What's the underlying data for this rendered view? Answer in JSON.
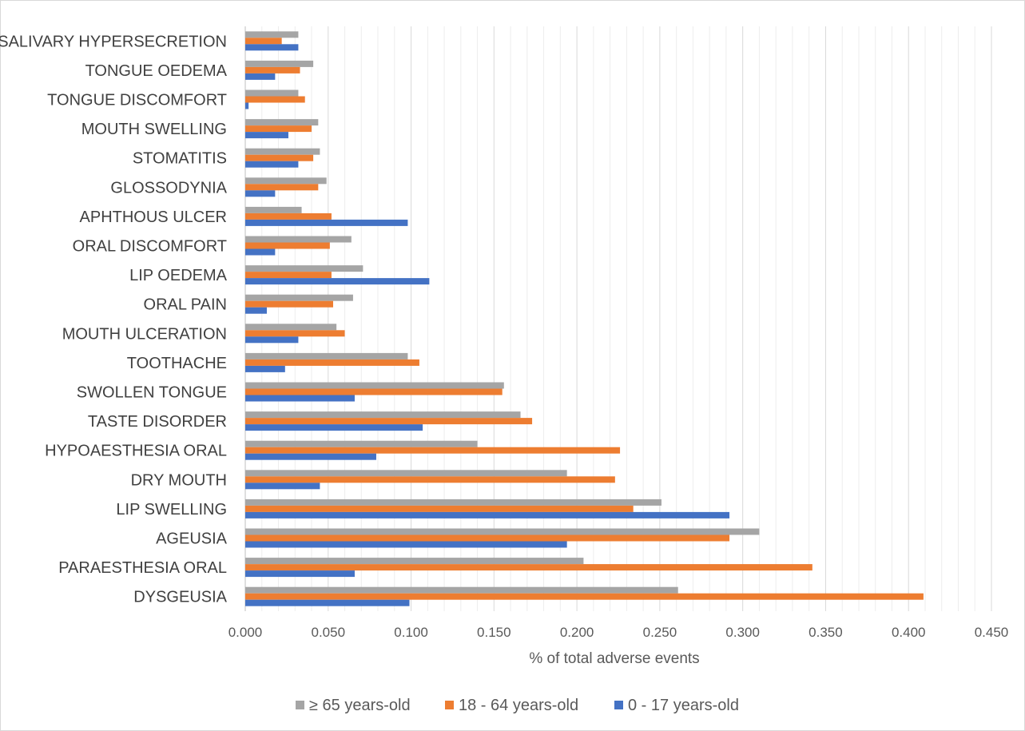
{
  "chart_data": {
    "type": "bar",
    "orientation": "horizontal",
    "categories": [
      "SALIVARY HYPERSECRETION",
      "TONGUE OEDEMA",
      "TONGUE DISCOMFORT",
      "MOUTH SWELLING",
      "STOMATITIS",
      "GLOSSODYNIA",
      "APHTHOUS ULCER",
      "ORAL DISCOMFORT",
      "LIP OEDEMA",
      "ORAL PAIN",
      "MOUTH ULCERATION",
      "TOOTHACHE",
      "SWOLLEN TONGUE",
      "TASTE DISORDER",
      "HYPOAESTHESIA ORAL",
      "DRY MOUTH",
      "LIP SWELLING",
      "AGEUSIA",
      "PARAESTHESIA ORAL",
      "DYSGEUSIA"
    ],
    "series": [
      {
        "name": "≥ 65 years-old",
        "color": "#a5a5a5",
        "values": [
          0.032,
          0.041,
          0.032,
          0.044,
          0.045,
          0.049,
          0.034,
          0.064,
          0.071,
          0.065,
          0.055,
          0.098,
          0.156,
          0.166,
          0.14,
          0.194,
          0.251,
          0.31,
          0.204,
          0.261
        ]
      },
      {
        "name": "18 - 64 years-old",
        "color": "#ed7d31",
        "values": [
          0.022,
          0.033,
          0.036,
          0.04,
          0.041,
          0.044,
          0.052,
          0.051,
          0.052,
          0.053,
          0.06,
          0.105,
          0.155,
          0.173,
          0.226,
          0.223,
          0.234,
          0.292,
          0.342,
          0.409
        ]
      },
      {
        "name": "0 - 17 years-old",
        "color": "#4472c4",
        "values": [
          0.032,
          0.018,
          0.002,
          0.026,
          0.032,
          0.018,
          0.098,
          0.018,
          0.111,
          0.013,
          0.032,
          0.024,
          0.066,
          0.107,
          0.079,
          0.045,
          0.292,
          0.194,
          0.066,
          0.099
        ]
      }
    ],
    "x_ticks": [
      "0.000",
      "0.050",
      "0.100",
      "0.150",
      "0.200",
      "0.250",
      "0.300",
      "0.350",
      "0.400",
      "0.450"
    ],
    "xlim": [
      0,
      0.45
    ],
    "xlabel": "% of total adverse events",
    "ylabel": "",
    "title": "",
    "grid": true,
    "legend": {
      "position": "bottom"
    }
  }
}
